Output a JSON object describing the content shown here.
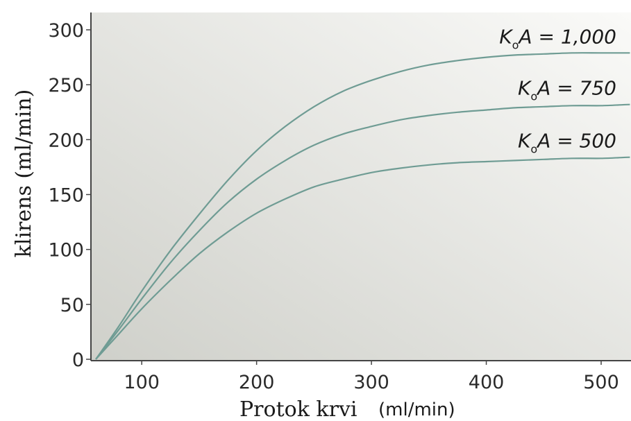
{
  "chart_data": {
    "type": "line",
    "title": "",
    "xlabel": "Protok krvi",
    "xlabel_unit": "(ml/min)",
    "ylabel": "klirens (ml/min)",
    "xlim": [
      60,
      525
    ],
    "ylim": [
      0,
      310
    ],
    "xticks": [
      "100",
      "200",
      "300",
      "400",
      "500"
    ],
    "yticks": [
      "0",
      "50",
      "100",
      "150",
      "200",
      "250",
      "300"
    ],
    "grid": false,
    "legend": "inline-right",
    "line_color": "#6f9c94",
    "background": {
      "from": "#cfd0ca",
      "to": "#fafaf8"
    },
    "series": [
      {
        "label_main": "K",
        "label_sub": "o",
        "label_rest": "A = 1,000",
        "x": [
          60,
          80,
          100,
          125,
          150,
          175,
          200,
          225,
          250,
          275,
          300,
          325,
          350,
          375,
          400,
          425,
          450,
          475,
          500,
          525
        ],
        "y": [
          0,
          30,
          62,
          99,
          132,
          163,
          190,
          212,
          230,
          244,
          254,
          262,
          268,
          272,
          275,
          277,
          278,
          279,
          279,
          279
        ]
      },
      {
        "label_main": "K",
        "label_sub": "o",
        "label_rest": "A = 750",
        "x": [
          60,
          80,
          100,
          125,
          150,
          175,
          200,
          225,
          250,
          275,
          300,
          325,
          350,
          375,
          400,
          425,
          450,
          475,
          500,
          525
        ],
        "y": [
          0,
          27,
          55,
          88,
          117,
          143,
          164,
          181,
          195,
          205,
          212,
          218,
          222,
          225,
          227,
          229,
          230,
          231,
          231,
          232
        ]
      },
      {
        "label_main": "K",
        "label_sub": "o",
        "label_rest": "A = 500",
        "x": [
          60,
          80,
          100,
          125,
          150,
          175,
          200,
          225,
          250,
          275,
          300,
          325,
          350,
          375,
          400,
          425,
          450,
          475,
          500,
          525
        ],
        "y": [
          0,
          23,
          46,
          72,
          96,
          116,
          133,
          146,
          157,
          164,
          170,
          174,
          177,
          179,
          180,
          181,
          182,
          183,
          183,
          184
        ]
      }
    ]
  }
}
